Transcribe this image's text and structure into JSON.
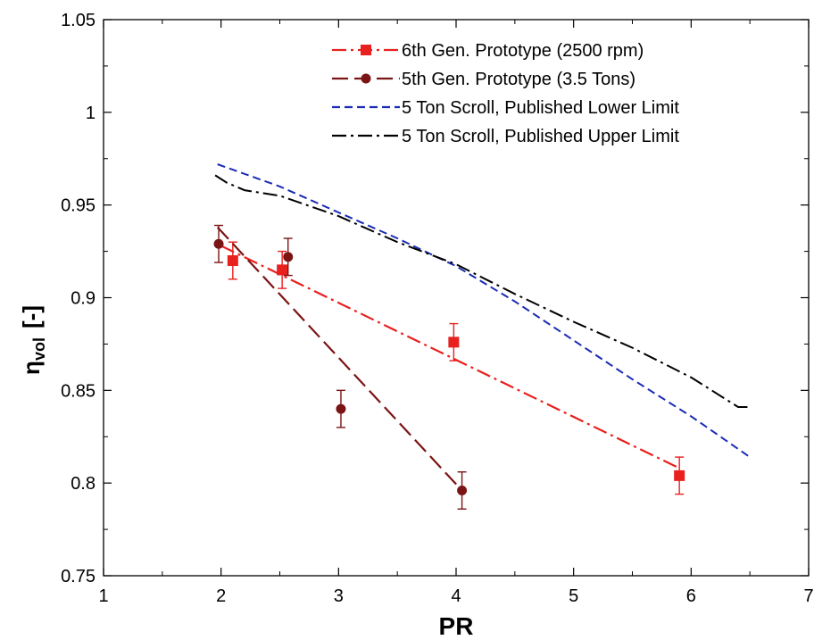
{
  "chart_data": {
    "type": "line",
    "title": "",
    "xlabel": "PR",
    "ylabel_main": "η",
    "ylabel_sub": "vol",
    "ylabel_unit": "[-]",
    "xlim": [
      1,
      7
    ],
    "ylim": [
      0.75,
      1.05
    ],
    "x_ticks": [
      1,
      2,
      3,
      4,
      5,
      6,
      7
    ],
    "x_tick_labels": [
      "1",
      "2",
      "3",
      "4",
      "5",
      "6",
      "7"
    ],
    "y_ticks": [
      0.75,
      0.8,
      0.85,
      0.9,
      0.95,
      1.0,
      1.05
    ],
    "y_tick_labels": [
      "0.75",
      "0.8",
      "0.85",
      "0.9",
      "0.95",
      "1",
      "1.05"
    ],
    "grid": false,
    "legend_position": "top-right",
    "series": [
      {
        "name": "6th Gen. Prototype (2500 rpm)",
        "color": "#e8201e",
        "marker": "square",
        "line_style": "dashdot",
        "points": [
          {
            "x": 2.1,
            "y": 0.92,
            "err": 0.01
          },
          {
            "x": 2.52,
            "y": 0.915,
            "err": 0.01
          },
          {
            "x": 3.98,
            "y": 0.876,
            "err": 0.01
          },
          {
            "x": 5.9,
            "y": 0.804,
            "err": 0.01
          }
        ],
        "fit": [
          [
            2.0,
            0.928
          ],
          [
            5.9,
            0.808
          ]
        ]
      },
      {
        "name": "5th Gen. Prototype (3.5 Tons)",
        "color": "#7b1414",
        "marker": "circle",
        "line_style": "longdash",
        "points": [
          {
            "x": 1.98,
            "y": 0.929,
            "err": 0.01
          },
          {
            "x": 2.57,
            "y": 0.922,
            "err": 0.01
          },
          {
            "x": 3.02,
            "y": 0.84,
            "err": 0.01
          },
          {
            "x": 4.05,
            "y": 0.796,
            "err": 0.01
          }
        ],
        "fit": [
          [
            1.97,
            0.938
          ],
          [
            4.05,
            0.796
          ]
        ]
      },
      {
        "name": "5 Ton Scroll, Published Lower Limit",
        "color": "#1a2bb5",
        "marker": "none",
        "line_style": "dashed",
        "points": [
          {
            "x": 1.97,
            "y": 0.972
          },
          {
            "x": 2.5,
            "y": 0.96
          },
          {
            "x": 3.0,
            "y": 0.946
          },
          {
            "x": 3.5,
            "y": 0.932
          },
          {
            "x": 4.0,
            "y": 0.917
          },
          {
            "x": 4.5,
            "y": 0.898
          },
          {
            "x": 5.0,
            "y": 0.877
          },
          {
            "x": 5.5,
            "y": 0.856
          },
          {
            "x": 6.0,
            "y": 0.836
          },
          {
            "x": 6.5,
            "y": 0.814
          }
        ]
      },
      {
        "name": "5 Ton Scroll, Published Upper Limit",
        "color": "#000000",
        "marker": "none",
        "line_style": "dashdot",
        "points": [
          {
            "x": 1.95,
            "y": 0.966
          },
          {
            "x": 2.05,
            "y": 0.962
          },
          {
            "x": 2.2,
            "y": 0.958
          },
          {
            "x": 2.5,
            "y": 0.955
          },
          {
            "x": 3.0,
            "y": 0.944
          },
          {
            "x": 3.5,
            "y": 0.93
          },
          {
            "x": 4.0,
            "y": 0.918
          },
          {
            "x": 4.5,
            "y": 0.902
          },
          {
            "x": 5.0,
            "y": 0.887
          },
          {
            "x": 5.5,
            "y": 0.873
          },
          {
            "x": 6.0,
            "y": 0.857
          },
          {
            "x": 6.4,
            "y": 0.841
          },
          {
            "x": 6.5,
            "y": 0.841
          }
        ]
      }
    ]
  }
}
